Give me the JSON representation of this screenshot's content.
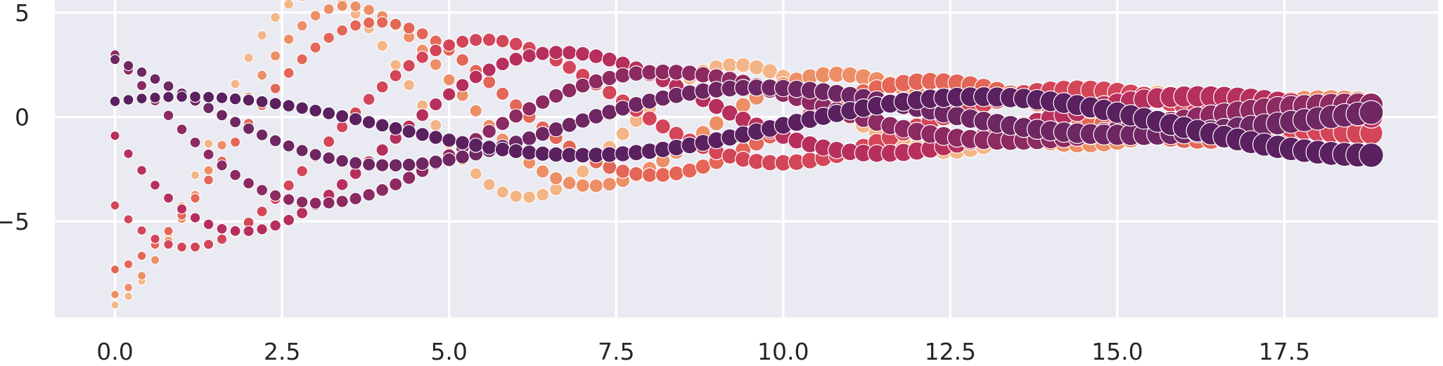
{
  "chart_data": {
    "type": "scatter",
    "title": "",
    "xlabel": "",
    "ylabel": "",
    "xlim": [
      -0.9,
      19.8
    ],
    "ylim": [
      -9.6,
      5.6
    ],
    "x_ticks": [
      0.0,
      2.5,
      5.0,
      7.5,
      10.0,
      12.5,
      15.0,
      17.5
    ],
    "x_tick_labels": [
      "0.0",
      "2.5",
      "5.0",
      "7.5",
      "10.0",
      "12.5",
      "15.0",
      "17.5"
    ],
    "y_ticks": [
      5,
      0,
      -5
    ],
    "y_tick_labels": [
      "5",
      "0",
      "−5"
    ],
    "grid": true,
    "background": "#eaeaf2",
    "grid_color": "#ffffff",
    "palette": "rocket_r",
    "marker_edge_color": "#ffffff",
    "point_spacing": 0.2,
    "x_range": [
      0.0,
      18.8
    ],
    "marker_size_range": [
      0.9,
      2.5
    ],
    "series": [
      {
        "index": 0,
        "color": "#f3b586",
        "y_at_0": -9.0,
        "amplitude": 9.0,
        "decay": 0.137,
        "frequency": 1.0,
        "phase": 4.71
      },
      {
        "index": 1,
        "color": "#ec8e66",
        "y_at_0": -8.5,
        "amplitude": 8.5,
        "decay": 0.131,
        "frequency": 0.86,
        "phase": 4.71
      },
      {
        "index": 2,
        "color": "#e36656",
        "y_at_0": -7.3,
        "amplitude": 7.3,
        "decay": 0.118,
        "frequency": 0.76,
        "phase": 4.71
      },
      {
        "index": 3,
        "color": "#d34558",
        "y_at_0": -4.2,
        "amplitude": 7.2,
        "decay": 0.118,
        "frequency": 0.71,
        "phase": 3.77
      },
      {
        "index": 4,
        "color": "#b62f5d",
        "y_at_0": -0.9,
        "amplitude": 7.0,
        "decay": 0.12,
        "frequency": 0.66,
        "phase": 3.27
      },
      {
        "index": 5,
        "color": "#8c2a61",
        "y_at_0": 3.0,
        "amplitude": 6.2,
        "decay": 0.126,
        "frequency": 0.61,
        "phase": 2.64
      },
      {
        "index": 6,
        "color": "#6e2762",
        "y_at_0": 1.9,
        "amplitude": 3.4,
        "decay": 0.09,
        "frequency": 0.57,
        "phase": 2.2
      },
      {
        "index": 7,
        "color": "#5a205f",
        "y_at_0": 0.75,
        "amplitude": 1.4,
        "decay": 0.0,
        "frequency": 0.53,
        "phase": 1.0
      }
    ]
  }
}
